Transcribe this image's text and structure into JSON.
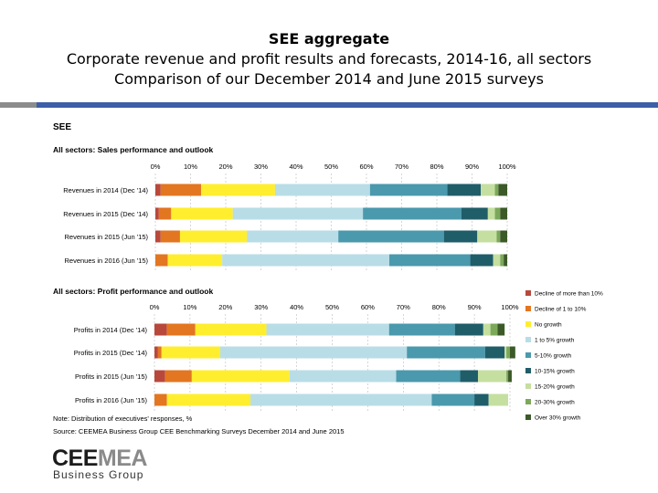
{
  "header": {
    "title": "SEE aggregate",
    "subtitle_1": "Corporate revenue and profit results and forecasts, 2014-16, all sectors",
    "subtitle_2": "Comparison of our December 2014 and June 2015 surveys"
  },
  "panel": {
    "heading": "SEE",
    "note": "Note: Distribution of executives' responses, %",
    "source": "Source: CEEMEA Business Group CEE Benchmarking Surveys December 2014 and June 2015"
  },
  "colors": {
    "series": [
      "#b8483c",
      "#e37620",
      "#ffee2e",
      "#b8dde6",
      "#4a99ad",
      "#1f5d69",
      "#c5dfa0",
      "#7ca85a",
      "#3c5a28"
    ],
    "rule_blue": "#3d5ea8",
    "rule_grey": "#8c8c8c"
  },
  "logo": {
    "name_part1": "CEE",
    "name_part2": "MEA",
    "subline": "Business Group"
  },
  "chart_data": [
    {
      "type": "bar",
      "orientation": "horizontal",
      "stacked": true,
      "title": "All sectors:  Sales performance and outlook",
      "ticks": [
        "0%",
        "10%",
        "20%",
        "30%",
        "40%",
        "50%",
        "60%",
        "70%",
        "80%",
        "90%",
        "100%"
      ],
      "xlim": [
        0,
        100
      ],
      "grid": true,
      "categories": [
        "Revenues in 2014 (Dec '14)",
        "Revenues in 2015 (Dec '14)",
        "Revenues in 2015 (Jun '15)",
        "Revenues in 2016 (Jun '15)"
      ],
      "series": [
        {
          "name": "Decline of more than 10%",
          "values": [
            1.5,
            1,
            1.5,
            0
          ]
        },
        {
          "name": "Decline of 1 to 10%",
          "values": [
            11.5,
            3.5,
            5.5,
            3.5
          ]
        },
        {
          "name": "No growth",
          "values": [
            21,
            17.5,
            19,
            15.5
          ]
        },
        {
          "name": "1 to 5% growth",
          "values": [
            27,
            37,
            26,
            47.5
          ]
        },
        {
          "name": "5-10% growth",
          "values": [
            22,
            28,
            30,
            23
          ]
        },
        {
          "name": "10-15% growth",
          "values": [
            9.5,
            7.5,
            9.5,
            6.5
          ]
        },
        {
          "name": "15-20% growth",
          "values": [
            4,
            2,
            5.5,
            2
          ]
        },
        {
          "name": "20-30% growth",
          "values": [
            1,
            1.5,
            1,
            1
          ]
        },
        {
          "name": "Over 30% growth",
          "values": [
            2.5,
            2,
            2,
            1
          ]
        }
      ]
    },
    {
      "type": "bar",
      "orientation": "horizontal",
      "stacked": true,
      "title": "All sectors: Profit performance and outlook",
      "ticks": [
        "0%",
        "10%",
        "20%",
        "30%",
        "40%",
        "50%",
        "60%",
        "70%",
        "80%",
        "90%",
        "100%"
      ],
      "xlim": [
        0,
        100
      ],
      "grid": true,
      "legend": "right",
      "categories": [
        "Profits in 2014 (Dec '14)",
        "Profits in 2015 (Dec '14)",
        "Profits in 2015 (Jun '15)",
        "Profits in 2016 (Jun '15)"
      ],
      "series": [
        {
          "name": "Decline of more than 10%",
          "values": [
            3.5,
            1,
            3,
            0
          ]
        },
        {
          "name": "Decline of 1 to 10%",
          "values": [
            8,
            1,
            7.5,
            3.5
          ]
        },
        {
          "name": "No growth",
          "values": [
            20,
            16.5,
            27.5,
            23.5
          ]
        },
        {
          "name": "1 to 5% growth",
          "values": [
            34.5,
            52.5,
            30,
            51
          ]
        },
        {
          "name": "5-10% growth",
          "values": [
            18.5,
            22,
            18,
            12
          ]
        },
        {
          "name": "10-15% growth",
          "values": [
            8,
            5.5,
            5,
            4
          ]
        },
        {
          "name": "15-20% growth",
          "values": [
            2,
            0.5,
            8,
            5.5
          ]
        },
        {
          "name": "20-30% growth",
          "values": [
            2,
            1,
            0.5,
            0
          ]
        },
        {
          "name": "Over 30% growth",
          "values": [
            2,
            1.5,
            1,
            0
          ]
        }
      ]
    }
  ]
}
